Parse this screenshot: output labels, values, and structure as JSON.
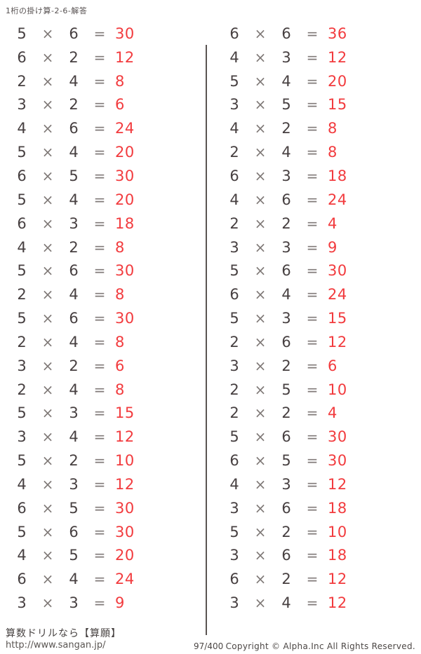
{
  "page": {
    "title": "1桁の掛け算-2-6-解答"
  },
  "signs": {
    "times": "×",
    "equals": "="
  },
  "colors": {
    "operand": "#474041",
    "operator": "#807a78",
    "answer": "#f23b3e",
    "divider": "#5a5452"
  },
  "columns": [
    {
      "problems": [
        {
          "a": 5,
          "b": 6,
          "ans": 30
        },
        {
          "a": 6,
          "b": 2,
          "ans": 12
        },
        {
          "a": 2,
          "b": 4,
          "ans": 8
        },
        {
          "a": 3,
          "b": 2,
          "ans": 6
        },
        {
          "a": 4,
          "b": 6,
          "ans": 24
        },
        {
          "a": 5,
          "b": 4,
          "ans": 20
        },
        {
          "a": 6,
          "b": 5,
          "ans": 30
        },
        {
          "a": 5,
          "b": 4,
          "ans": 20
        },
        {
          "a": 6,
          "b": 3,
          "ans": 18
        },
        {
          "a": 4,
          "b": 2,
          "ans": 8
        },
        {
          "a": 5,
          "b": 6,
          "ans": 30
        },
        {
          "a": 2,
          "b": 4,
          "ans": 8
        },
        {
          "a": 5,
          "b": 6,
          "ans": 30
        },
        {
          "a": 2,
          "b": 4,
          "ans": 8
        },
        {
          "a": 3,
          "b": 2,
          "ans": 6
        },
        {
          "a": 2,
          "b": 4,
          "ans": 8
        },
        {
          "a": 5,
          "b": 3,
          "ans": 15
        },
        {
          "a": 3,
          "b": 4,
          "ans": 12
        },
        {
          "a": 5,
          "b": 2,
          "ans": 10
        },
        {
          "a": 4,
          "b": 3,
          "ans": 12
        },
        {
          "a": 6,
          "b": 5,
          "ans": 30
        },
        {
          "a": 5,
          "b": 6,
          "ans": 30
        },
        {
          "a": 4,
          "b": 5,
          "ans": 20
        },
        {
          "a": 6,
          "b": 4,
          "ans": 24
        },
        {
          "a": 3,
          "b": 3,
          "ans": 9
        }
      ]
    },
    {
      "problems": [
        {
          "a": 6,
          "b": 6,
          "ans": 36
        },
        {
          "a": 4,
          "b": 3,
          "ans": 12
        },
        {
          "a": 5,
          "b": 4,
          "ans": 20
        },
        {
          "a": 3,
          "b": 5,
          "ans": 15
        },
        {
          "a": 4,
          "b": 2,
          "ans": 8
        },
        {
          "a": 2,
          "b": 4,
          "ans": 8
        },
        {
          "a": 6,
          "b": 3,
          "ans": 18
        },
        {
          "a": 4,
          "b": 6,
          "ans": 24
        },
        {
          "a": 2,
          "b": 2,
          "ans": 4
        },
        {
          "a": 3,
          "b": 3,
          "ans": 9
        },
        {
          "a": 5,
          "b": 6,
          "ans": 30
        },
        {
          "a": 6,
          "b": 4,
          "ans": 24
        },
        {
          "a": 5,
          "b": 3,
          "ans": 15
        },
        {
          "a": 2,
          "b": 6,
          "ans": 12
        },
        {
          "a": 3,
          "b": 2,
          "ans": 6
        },
        {
          "a": 2,
          "b": 5,
          "ans": 10
        },
        {
          "a": 2,
          "b": 2,
          "ans": 4
        },
        {
          "a": 5,
          "b": 6,
          "ans": 30
        },
        {
          "a": 6,
          "b": 5,
          "ans": 30
        },
        {
          "a": 4,
          "b": 3,
          "ans": 12
        },
        {
          "a": 3,
          "b": 6,
          "ans": 18
        },
        {
          "a": 5,
          "b": 2,
          "ans": 10
        },
        {
          "a": 3,
          "b": 6,
          "ans": 18
        },
        {
          "a": 6,
          "b": 2,
          "ans": 12
        },
        {
          "a": 3,
          "b": 4,
          "ans": 12
        }
      ]
    }
  ],
  "footer": {
    "site_name": "算数ドリルなら【算願】",
    "site_url": "http://www.sangan.jp/",
    "page_number": "97/400",
    "copyright": "Copyright © Alpha.Inc All Rights Reserved."
  }
}
